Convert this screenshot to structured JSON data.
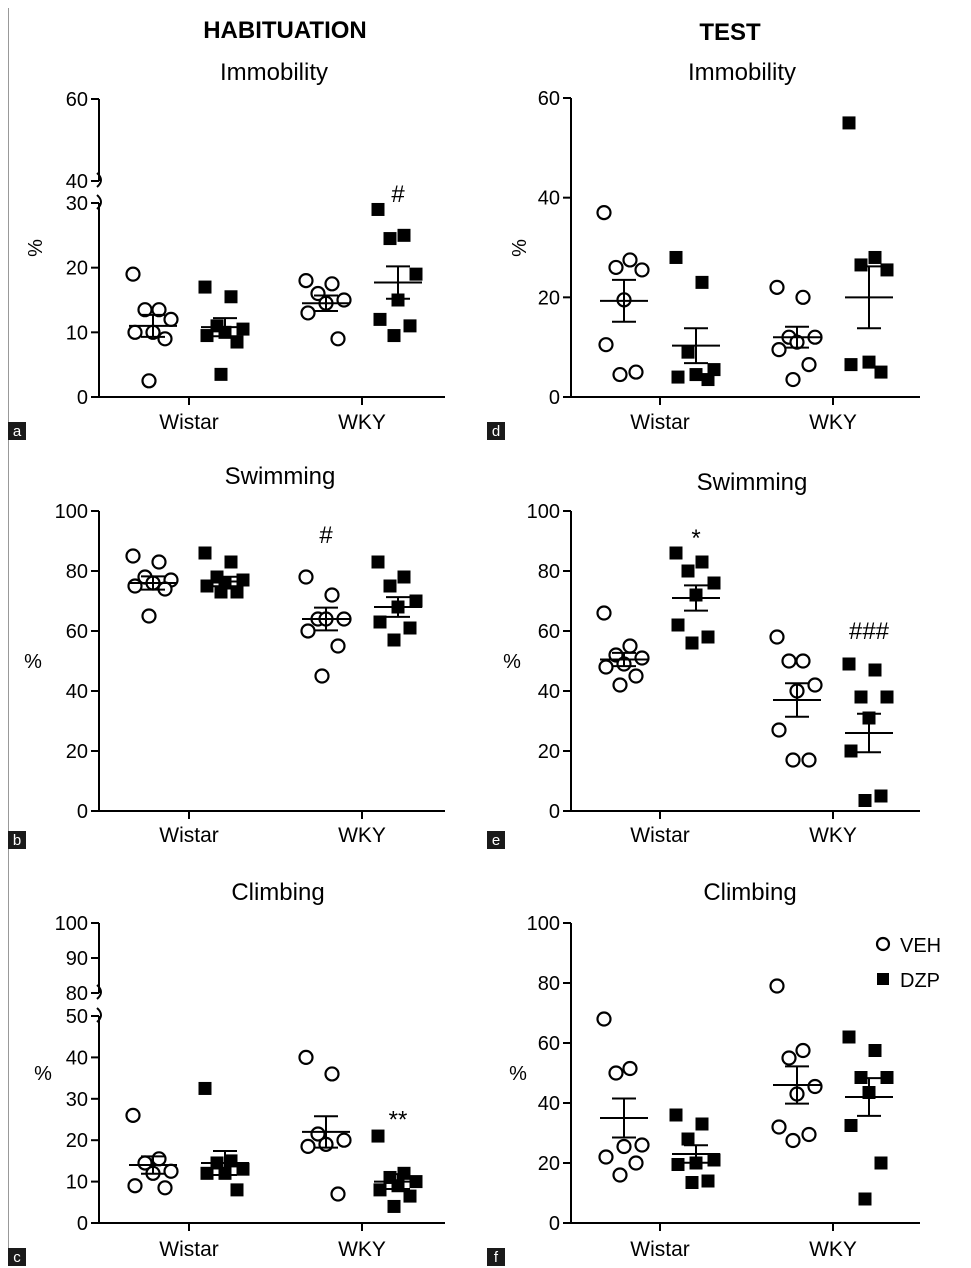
{
  "headers": {
    "left": "HABITUATION",
    "right": "TEST"
  },
  "legend": [
    {
      "label": "VEH",
      "marker": "open-circle"
    },
    {
      "label": "DZP",
      "marker": "filled-square"
    }
  ],
  "colors": {
    "ink": "#000000",
    "panel_label_bg": "#1a1a1a"
  },
  "chart_data": [
    {
      "panel": "a",
      "type": "scatter",
      "title": "Immobility",
      "ylabel": "%",
      "categories": [
        "Wistar",
        "WKY"
      ],
      "y_axis": {
        "broken": true,
        "lower": {
          "range": [
            0,
            30
          ],
          "ticks": [
            0,
            10,
            20,
            30
          ]
        },
        "upper": {
          "range": [
            40,
            60
          ],
          "ticks": [
            40,
            60
          ]
        }
      },
      "series": [
        {
          "name": "VEH",
          "marker": "open-circle",
          "groups": [
            {
              "values": [
                19,
                13.5,
                13.5,
                12,
                10,
                10,
                9,
                2.5
              ],
              "mean": 11,
              "sem": 1.7
            },
            {
              "values": [
                18,
                17.5,
                16,
                15,
                14.5,
                13,
                9
              ],
              "mean": 14.5,
              "sem": 1.2
            }
          ]
        },
        {
          "name": "DZP",
          "marker": "filled-square",
          "groups": [
            {
              "values": [
                17,
                15.5,
                11,
                10.5,
                10,
                9.5,
                8.5,
                3.5
              ],
              "mean": 10.8,
              "sem": 1.4
            },
            {
              "values": [
                29,
                25,
                24.5,
                19,
                15,
                12,
                11,
                9.5
              ],
              "mean": 17.7,
              "sem": 2.5
            }
          ]
        }
      ],
      "annotations": [
        {
          "text": "#",
          "category": "WKY",
          "series": "DZP",
          "y": 34
        }
      ]
    },
    {
      "panel": "b",
      "type": "scatter",
      "title": "Swimming",
      "ylabel": "%",
      "categories": [
        "Wistar",
        "WKY"
      ],
      "y_axis": {
        "range": [
          0,
          100
        ],
        "ticks": [
          0,
          20,
          40,
          60,
          80,
          100
        ]
      },
      "series": [
        {
          "name": "VEH",
          "marker": "open-circle",
          "groups": [
            {
              "values": [
                85,
                83,
                78,
                77,
                76,
                75,
                74,
                65
              ],
              "mean": 76,
              "sem": 2.2
            },
            {
              "values": [
                78,
                72,
                64,
                64,
                64,
                60,
                55,
                45
              ],
              "mean": 64,
              "sem": 3.8
            }
          ]
        },
        {
          "name": "DZP",
          "marker": "filled-square",
          "groups": [
            {
              "values": [
                86,
                83,
                78,
                77,
                76,
                75,
                73,
                73
              ],
              "mean": 76.5,
              "sem": 1.6
            },
            {
              "values": [
                83,
                78,
                75,
                70,
                68,
                63,
                61,
                57
              ],
              "mean": 68,
              "sem": 3.3
            }
          ]
        }
      ],
      "annotations": [
        {
          "text": "#",
          "category": "WKY",
          "series": "VEH",
          "y": 92
        }
      ]
    },
    {
      "panel": "c",
      "type": "scatter",
      "title": "Climbing",
      "ylabel": "%",
      "categories": [
        "Wistar",
        "WKY"
      ],
      "y_axis": {
        "broken": true,
        "lower": {
          "range": [
            0,
            50
          ],
          "ticks": [
            0,
            10,
            20,
            30,
            40,
            50
          ]
        },
        "upper": {
          "range": [
            80,
            100
          ],
          "ticks": [
            80,
            90,
            100
          ]
        }
      },
      "series": [
        {
          "name": "VEH",
          "marker": "open-circle",
          "groups": [
            {
              "values": [
                26,
                15.5,
                14.5,
                12.5,
                12,
                9,
                8.5
              ],
              "mean": 14,
              "sem": 2.1
            },
            {
              "values": [
                40,
                36,
                21.5,
                20,
                19,
                18.5,
                7
              ],
              "mean": 22,
              "sem": 3.8
            }
          ]
        },
        {
          "name": "DZP",
          "marker": "filled-square",
          "groups": [
            {
              "values": [
                32.5,
                15,
                14.5,
                13,
                12,
                12,
                8
              ],
              "mean": 14.5,
              "sem": 2.9
            },
            {
              "values": [
                21,
                12,
                11,
                10,
                9,
                8,
                6.5,
                4
              ],
              "mean": 10,
              "sem": 1.8
            }
          ]
        }
      ],
      "annotations": [
        {
          "text": "**",
          "category": "WKY",
          "series": "DZP",
          "y": 25
        }
      ]
    },
    {
      "panel": "d",
      "type": "scatter",
      "title": "Immobility",
      "ylabel": "%",
      "categories": [
        "Wistar",
        "WKY"
      ],
      "y_axis": {
        "range": [
          0,
          60
        ],
        "ticks": [
          0,
          20,
          40,
          60
        ]
      },
      "series": [
        {
          "name": "VEH",
          "marker": "open-circle",
          "groups": [
            {
              "values": [
                37,
                27.5,
                26,
                25.5,
                19.5,
                10.5,
                5,
                4.5
              ],
              "mean": 19.3,
              "sem": 4.2
            },
            {
              "values": [
                22,
                20,
                12,
                12,
                11,
                9.5,
                6.5,
                3.5
              ],
              "mean": 12,
              "sem": 2.1
            }
          ]
        },
        {
          "name": "DZP",
          "marker": "filled-square",
          "groups": [
            {
              "values": [
                28,
                23,
                9,
                5.5,
                4.5,
                4,
                3.5
              ],
              "mean": 10.3,
              "sem": 3.5
            },
            {
              "values": [
                55,
                28,
                26.5,
                25.5,
                7,
                6.5,
                5
              ],
              "mean": 20,
              "sem": 6.2
            }
          ]
        }
      ],
      "annotations": []
    },
    {
      "panel": "e",
      "type": "scatter",
      "title": "Swimming",
      "ylabel": "%",
      "categories": [
        "Wistar",
        "WKY"
      ],
      "y_axis": {
        "range": [
          0,
          100
        ],
        "ticks": [
          0,
          20,
          40,
          60,
          80,
          100
        ]
      },
      "series": [
        {
          "name": "VEH",
          "marker": "open-circle",
          "groups": [
            {
              "values": [
                66,
                55,
                52,
                51,
                49,
                48,
                45,
                42
              ],
              "mean": 50.5,
              "sem": 2.2
            },
            {
              "values": [
                58,
                50,
                50,
                42,
                40,
                27,
                17,
                17
              ],
              "mean": 37,
              "sem": 5.6
            }
          ]
        },
        {
          "name": "DZP",
          "marker": "filled-square",
          "groups": [
            {
              "values": [
                86,
                83,
                80,
                76,
                72,
                62,
                58,
                56
              ],
              "mean": 71,
              "sem": 4.2
            },
            {
              "values": [
                49,
                47,
                38,
                38,
                31,
                20,
                5,
                3.5
              ],
              "mean": 26,
              "sem": 6.4
            }
          ]
        }
      ],
      "annotations": [
        {
          "text": "*",
          "category": "Wistar",
          "series": "DZP",
          "y": 91
        },
        {
          "text": "###",
          "category": "WKY",
          "series": "DZP",
          "y": 60
        }
      ]
    },
    {
      "panel": "f",
      "type": "scatter",
      "title": "Climbing",
      "ylabel": "%",
      "categories": [
        "Wistar",
        "WKY"
      ],
      "y_axis": {
        "range": [
          0,
          100
        ],
        "ticks": [
          0,
          20,
          40,
          60,
          80,
          100
        ]
      },
      "series": [
        {
          "name": "VEH",
          "marker": "open-circle",
          "groups": [
            {
              "values": [
                68,
                51.5,
                50,
                26,
                25.5,
                22,
                20,
                16
              ],
              "mean": 35,
              "sem": 6.5
            },
            {
              "values": [
                79,
                57.5,
                55,
                45.5,
                43,
                32,
                29.5,
                27.5
              ],
              "mean": 46,
              "sem": 6.2
            }
          ]
        },
        {
          "name": "DZP",
          "marker": "filled-square",
          "groups": [
            {
              "values": [
                36,
                33,
                28,
                21,
                20,
                19.5,
                14,
                13.5
              ],
              "mean": 23,
              "sem": 2.9
            },
            {
              "values": [
                62,
                57.5,
                48.5,
                48.5,
                43.5,
                32.5,
                20,
                8
              ],
              "mean": 42,
              "sem": 6.3
            }
          ]
        }
      ],
      "annotations": []
    }
  ]
}
